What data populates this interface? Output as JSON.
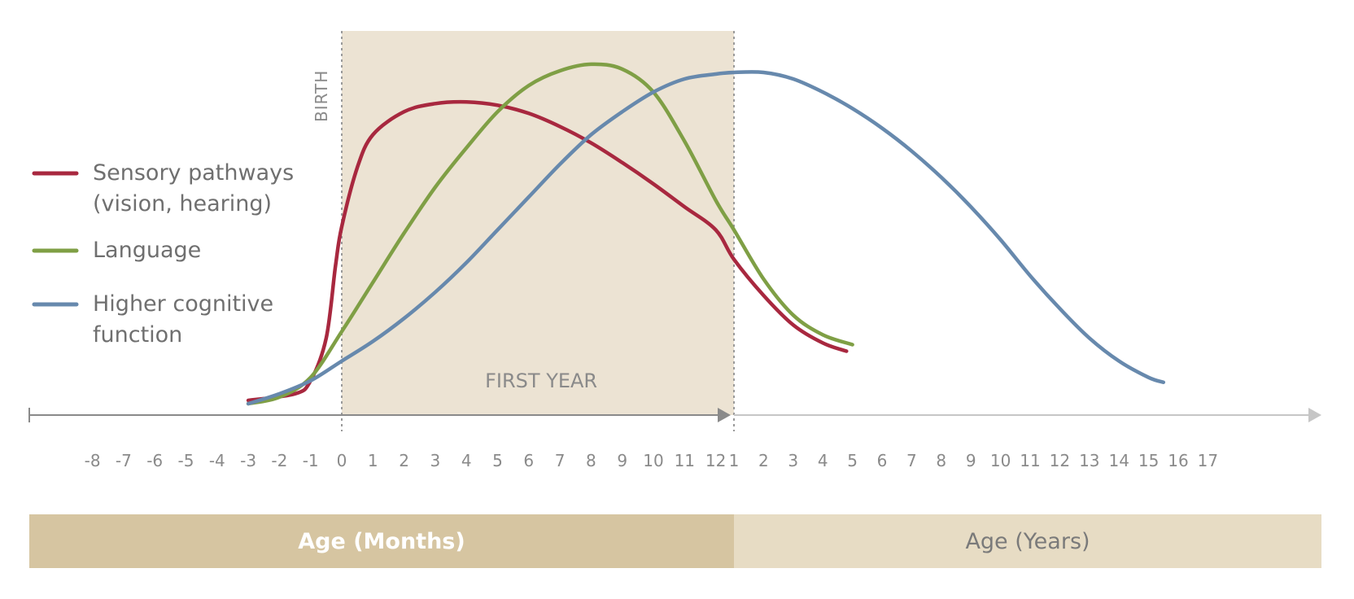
{
  "colors": {
    "sensory": "#a8283f",
    "language": "#7f9f45",
    "cognitive": "#6789ad",
    "first_year_shade": "#ece3d3",
    "months_band": "#d6c5a1",
    "years_band": "#e7dcc4",
    "axis_months": "#8a8a8a",
    "axis_years": "#c6c6c6"
  },
  "legend": {
    "items": [
      {
        "key": "sensory",
        "lines": [
          "Sensory pathways",
          "(vision, hearing)"
        ]
      },
      {
        "key": "language",
        "lines": [
          "Language"
        ]
      },
      {
        "key": "cognitive",
        "lines": [
          "Higher cognitive",
          "function"
        ]
      }
    ]
  },
  "bands": {
    "months_label": "Age (Months)",
    "years_label": "Age (Years)"
  },
  "annotations": {
    "birth": "BIRTH",
    "first_year": "FIRST YEAR"
  },
  "chart_data": {
    "type": "line",
    "xlabel_months": "Age (Months)",
    "xlabel_years": "Age (Years)",
    "month_ticks": [
      "-8",
      "-7",
      "-6",
      "-5",
      "-4",
      "-3",
      "-2",
      "-1",
      "0",
      "1",
      "2",
      "3",
      "4",
      "5",
      "6",
      "7",
      "8",
      "9",
      "10",
      "11",
      "12"
    ],
    "year_ticks": [
      "1",
      "2",
      "3",
      "4",
      "5",
      "6",
      "7",
      "8",
      "9",
      "10",
      "11",
      "12",
      "13",
      "14",
      "15",
      "16",
      "17"
    ],
    "y_axis_shown": false,
    "ylim": [
      0,
      100
    ],
    "series": [
      {
        "name": "Sensory pathways (vision, hearing)",
        "key": "sensory",
        "points": [
          {
            "axis": "months",
            "x": -3,
            "y": 1
          },
          {
            "axis": "months",
            "x": -1.5,
            "y": 3
          },
          {
            "axis": "months",
            "x": -1,
            "y": 7
          },
          {
            "axis": "months",
            "x": -0.5,
            "y": 20
          },
          {
            "axis": "months",
            "x": -0.2,
            "y": 42
          },
          {
            "axis": "months",
            "x": 0,
            "y": 54
          },
          {
            "axis": "months",
            "x": 0.5,
            "y": 72
          },
          {
            "axis": "months",
            "x": 1,
            "y": 82
          },
          {
            "axis": "months",
            "x": 2,
            "y": 89
          },
          {
            "axis": "months",
            "x": 3,
            "y": 91.5
          },
          {
            "axis": "months",
            "x": 4,
            "y": 92
          },
          {
            "axis": "months",
            "x": 5,
            "y": 91
          },
          {
            "axis": "months",
            "x": 6,
            "y": 88.5
          },
          {
            "axis": "months",
            "x": 7,
            "y": 84.5
          },
          {
            "axis": "months",
            "x": 8,
            "y": 79.5
          },
          {
            "axis": "months",
            "x": 9,
            "y": 73.5
          },
          {
            "axis": "months",
            "x": 10,
            "y": 67
          },
          {
            "axis": "months",
            "x": 11,
            "y": 60
          },
          {
            "axis": "months",
            "x": 12,
            "y": 53
          },
          {
            "axis": "years",
            "x": 1,
            "y": 44
          },
          {
            "axis": "years",
            "x": 2,
            "y": 33
          },
          {
            "axis": "years",
            "x": 3,
            "y": 24
          },
          {
            "axis": "years",
            "x": 4,
            "y": 18.5
          },
          {
            "axis": "years",
            "x": 4.8,
            "y": 16
          }
        ]
      },
      {
        "name": "Language",
        "key": "language",
        "points": [
          {
            "axis": "months",
            "x": -3,
            "y": 0
          },
          {
            "axis": "months",
            "x": -2,
            "y": 2
          },
          {
            "axis": "months",
            "x": -1,
            "y": 8
          },
          {
            "axis": "months",
            "x": 0,
            "y": 22
          },
          {
            "axis": "months",
            "x": 1,
            "y": 37
          },
          {
            "axis": "months",
            "x": 2,
            "y": 52
          },
          {
            "axis": "months",
            "x": 3,
            "y": 66
          },
          {
            "axis": "months",
            "x": 4,
            "y": 78
          },
          {
            "axis": "months",
            "x": 5,
            "y": 89
          },
          {
            "axis": "months",
            "x": 6,
            "y": 97
          },
          {
            "axis": "months",
            "x": 7,
            "y": 101.5
          },
          {
            "axis": "months",
            "x": 8,
            "y": 103.5
          },
          {
            "axis": "months",
            "x": 9,
            "y": 102
          },
          {
            "axis": "months",
            "x": 10,
            "y": 95
          },
          {
            "axis": "months",
            "x": 11,
            "y": 80
          },
          {
            "axis": "months",
            "x": 12,
            "y": 62
          },
          {
            "axis": "years",
            "x": 1,
            "y": 53
          },
          {
            "axis": "years",
            "x": 2,
            "y": 38
          },
          {
            "axis": "years",
            "x": 3,
            "y": 27
          },
          {
            "axis": "years",
            "x": 4,
            "y": 21
          },
          {
            "axis": "years",
            "x": 5,
            "y": 18
          }
        ]
      },
      {
        "name": "Higher cognitive function",
        "key": "cognitive",
        "points": [
          {
            "axis": "months",
            "x": -3,
            "y": 0
          },
          {
            "axis": "months",
            "x": -2,
            "y": 3
          },
          {
            "axis": "months",
            "x": -1,
            "y": 7
          },
          {
            "axis": "months",
            "x": 0,
            "y": 13
          },
          {
            "axis": "months",
            "x": 1,
            "y": 19
          },
          {
            "axis": "months",
            "x": 2,
            "y": 26
          },
          {
            "axis": "months",
            "x": 3,
            "y": 34
          },
          {
            "axis": "months",
            "x": 4,
            "y": 43
          },
          {
            "axis": "months",
            "x": 5,
            "y": 53
          },
          {
            "axis": "months",
            "x": 6,
            "y": 63
          },
          {
            "axis": "months",
            "x": 7,
            "y": 73
          },
          {
            "axis": "months",
            "x": 8,
            "y": 82
          },
          {
            "axis": "months",
            "x": 9,
            "y": 89
          },
          {
            "axis": "months",
            "x": 10,
            "y": 95
          },
          {
            "axis": "months",
            "x": 11,
            "y": 99
          },
          {
            "axis": "months",
            "x": 12,
            "y": 100.5
          },
          {
            "axis": "years",
            "x": 1,
            "y": 101
          },
          {
            "axis": "years",
            "x": 2,
            "y": 101
          },
          {
            "axis": "years",
            "x": 3,
            "y": 99
          },
          {
            "axis": "years",
            "x": 4,
            "y": 95
          },
          {
            "axis": "years",
            "x": 5,
            "y": 90
          },
          {
            "axis": "years",
            "x": 6,
            "y": 84
          },
          {
            "axis": "years",
            "x": 7,
            "y": 77
          },
          {
            "axis": "years",
            "x": 8,
            "y": 69
          },
          {
            "axis": "years",
            "x": 9,
            "y": 60
          },
          {
            "axis": "years",
            "x": 10,
            "y": 50
          },
          {
            "axis": "years",
            "x": 11,
            "y": 39
          },
          {
            "axis": "years",
            "x": 12,
            "y": 29
          },
          {
            "axis": "years",
            "x": 13,
            "y": 20
          },
          {
            "axis": "years",
            "x": 14,
            "y": 13
          },
          {
            "axis": "years",
            "x": 15,
            "y": 8
          },
          {
            "axis": "years",
            "x": 15.5,
            "y": 6.5
          }
        ]
      }
    ],
    "legend_position": "left",
    "grid": false
  }
}
